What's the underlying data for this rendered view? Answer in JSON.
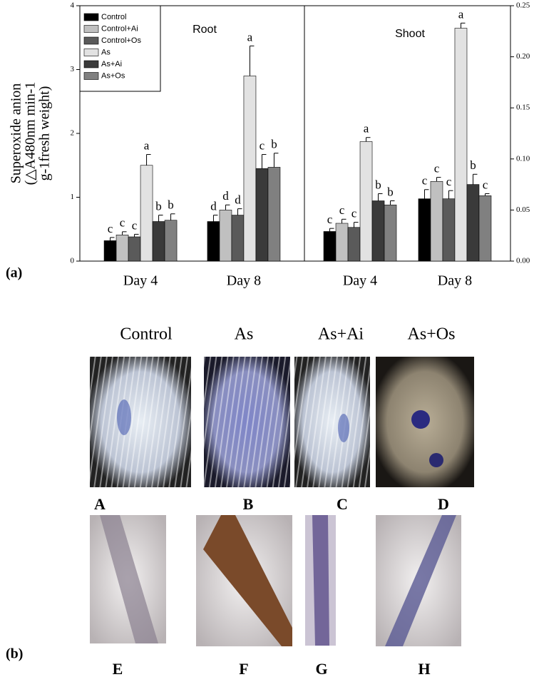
{
  "chart_data": [
    {
      "type": "bar",
      "title": "Root",
      "y_axis": "left",
      "legend": "upper left",
      "ylabel": [
        "Superoxide anion",
        "(△A480nm min-1",
        "g-1fresh weight)"
      ],
      "categories": [
        "Day 4",
        "Day 8"
      ],
      "ylim": [
        0,
        4
      ],
      "yticks": [
        0,
        1,
        2,
        3,
        4
      ],
      "series": [
        {
          "name": "Control",
          "color": "#000000",
          "values": [
            0.32,
            0.62
          ],
          "errors": [
            0.05,
            0.1
          ],
          "letters": [
            "c",
            "d"
          ]
        },
        {
          "name": "Control+Ai",
          "color": "#c0c0c0",
          "values": [
            0.41,
            0.8
          ],
          "errors": [
            0.05,
            0.08
          ],
          "letters": [
            "c",
            "d"
          ]
        },
        {
          "name": "Control+Os",
          "color": "#5a5a5a",
          "values": [
            0.38,
            0.72
          ],
          "errors": [
            0.04,
            0.1
          ],
          "letters": [
            "c",
            "d"
          ]
        },
        {
          "name": "As",
          "color": "#e2e2e2",
          "values": [
            1.5,
            2.9
          ],
          "errors": [
            0.17,
            0.47
          ],
          "letters": [
            "a",
            "a"
          ]
        },
        {
          "name": "As+Ai",
          "color": "#3a3a3a",
          "values": [
            0.62,
            1.45
          ],
          "errors": [
            0.1,
            0.22
          ],
          "letters": [
            "b",
            "c"
          ]
        },
        {
          "name": "As+Os",
          "color": "#808080",
          "values": [
            0.64,
            1.47
          ],
          "errors": [
            0.1,
            0.22
          ],
          "letters": [
            "b",
            "b"
          ]
        }
      ]
    },
    {
      "type": "bar",
      "title": "Shoot",
      "y_axis": "right",
      "categories": [
        "Day 4",
        "Day 8"
      ],
      "ylim": [
        0,
        0.25
      ],
      "yticks": [
        {
          "value": 0,
          "label": "0.00"
        },
        {
          "value": 0.05,
          "label": "0.05"
        },
        {
          "value": 0.1,
          "label": "0.10"
        },
        {
          "value": 0.15,
          "label": "0.15"
        },
        {
          "value": 0.2,
          "label": "0.20"
        },
        {
          "value": 0.25,
          "label": "0.25"
        }
      ],
      "series": [
        {
          "color": "#000000",
          "values": [
            0.029,
            0.061
          ],
          "errors": [
            0.003,
            0.009
          ],
          "letters": [
            "c",
            "c"
          ]
        },
        {
          "color": "#c0c0c0",
          "values": [
            0.037,
            0.078
          ],
          "errors": [
            0.004,
            0.004
          ],
          "letters": [
            "c",
            "c"
          ]
        },
        {
          "color": "#5a5a5a",
          "values": [
            0.033,
            0.061
          ],
          "errors": [
            0.005,
            0.008
          ],
          "letters": [
            "c",
            "c"
          ]
        },
        {
          "color": "#e2e2e2",
          "values": [
            0.117,
            0.228
          ],
          "errors": [
            0.004,
            0.005
          ],
          "letters": [
            "a",
            "a"
          ]
        },
        {
          "color": "#3a3a3a",
          "values": [
            0.059,
            0.075
          ],
          "errors": [
            0.007,
            0.01
          ],
          "letters": [
            "b",
            "b"
          ]
        },
        {
          "color": "#808080",
          "values": [
            0.055,
            0.064
          ],
          "errors": [
            0.004,
            0.002
          ],
          "letters": [
            "b",
            "c"
          ]
        }
      ]
    }
  ],
  "panel_labels": [
    "(a)",
    "(b)"
  ],
  "image_columns": [
    "Control",
    "As",
    "As+Ai",
    "As+Os"
  ],
  "image_labels": [
    "A",
    "B",
    "C",
    "D",
    "E",
    "F",
    "G",
    "H"
  ]
}
